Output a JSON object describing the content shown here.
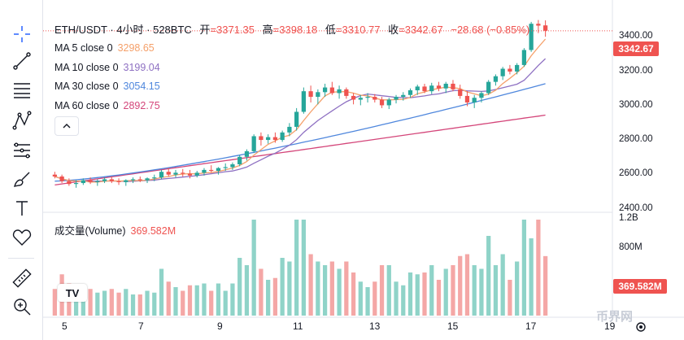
{
  "symbol": "ETH/USDT · 4小时 · 528BTC",
  "ohlc": {
    "open_label": "开",
    "open": "=3371.35",
    "high_label": "高",
    "high": "=3398.18",
    "low_label": "低",
    "low": "=3310.77",
    "close_label": "收",
    "close": "=3342.67",
    "change": "−28.68 (−0.85%)"
  },
  "ma": [
    {
      "label": "MA 5 close 0",
      "value": "3298.65",
      "color": "#f5a06a"
    },
    {
      "label": "MA 10 close 0",
      "value": "3199.04",
      "color": "#8e70c2"
    },
    {
      "label": "MA 30 close 0",
      "value": "3054.15",
      "color": "#4f87dd"
    },
    {
      "label": "MA 60 close 0",
      "value": "2892.75",
      "color": "#d4467a"
    }
  ],
  "volume": {
    "label": "成交量(Volume)",
    "value": "369.582M"
  },
  "price_axis": [
    "3400.00",
    "3200.00",
    "3000.00",
    "2800.00",
    "2600.00",
    "2400.00"
  ],
  "volume_axis": [
    "1.2B",
    "800M"
  ],
  "last_price_tag": "3342.67",
  "volume_tag": "369.582M",
  "x_axis": [
    "5",
    "7",
    "9",
    "11",
    "13",
    "15",
    "17",
    "19"
  ],
  "tv_logo": "TV",
  "watermark": "币界网",
  "colors": {
    "up": "#26a69a",
    "down": "#ef5350",
    "up_vol": "#8fd3c8",
    "down_vol": "#f4a7a6"
  },
  "toolbar_icons": [
    "crosshair-icon",
    "trend-line-icon",
    "horizontal-lines-icon",
    "pitchfork-icon",
    "fib-icon",
    "brush-icon",
    "text-icon",
    "heart-icon",
    "ruler-icon",
    "zoom-icon"
  ],
  "chart_data": {
    "type": "candlestick",
    "candles": [
      [
        2575,
        2590,
        2555,
        2565
      ],
      [
        2565,
        2575,
        2530,
        2540
      ],
      [
        2540,
        2555,
        2515,
        2525
      ],
      [
        2525,
        2545,
        2505,
        2530
      ],
      [
        2530,
        2555,
        2520,
        2545
      ],
      [
        2545,
        2560,
        2525,
        2535
      ],
      [
        2535,
        2550,
        2515,
        2540
      ],
      [
        2540,
        2560,
        2530,
        2550
      ],
      [
        2550,
        2565,
        2530,
        2540
      ],
      [
        2540,
        2555,
        2520,
        2535
      ],
      [
        2535,
        2550,
        2515,
        2545
      ],
      [
        2545,
        2560,
        2530,
        2550
      ],
      [
        2550,
        2565,
        2535,
        2545
      ],
      [
        2545,
        2560,
        2530,
        2555
      ],
      [
        2555,
        2575,
        2540,
        2560
      ],
      [
        2560,
        2600,
        2550,
        2590
      ],
      [
        2590,
        2610,
        2565,
        2575
      ],
      [
        2575,
        2600,
        2560,
        2585
      ],
      [
        2585,
        2605,
        2565,
        2580
      ],
      [
        2580,
        2600,
        2555,
        2570
      ],
      [
        2570,
        2595,
        2560,
        2585
      ],
      [
        2585,
        2610,
        2570,
        2600
      ],
      [
        2600,
        2625,
        2585,
        2595
      ],
      [
        2595,
        2615,
        2575,
        2610
      ],
      [
        2610,
        2635,
        2595,
        2615
      ],
      [
        2615,
        2640,
        2600,
        2630
      ],
      [
        2630,
        2680,
        2620,
        2670
      ],
      [
        2670,
        2710,
        2650,
        2700
      ],
      [
        2700,
        2790,
        2690,
        2780
      ],
      [
        2780,
        2800,
        2730,
        2760
      ],
      [
        2760,
        2790,
        2740,
        2775
      ],
      [
        2775,
        2800,
        2745,
        2760
      ],
      [
        2760,
        2810,
        2750,
        2800
      ],
      [
        2800,
        2850,
        2780,
        2830
      ],
      [
        2830,
        2930,
        2810,
        2910
      ],
      [
        2910,
        3040,
        2900,
        3020
      ],
      [
        3020,
        3050,
        2960,
        2990
      ],
      [
        2990,
        3030,
        2950,
        3015
      ],
      [
        3015,
        3060,
        2990,
        3040
      ],
      [
        3040,
        3070,
        3000,
        3010
      ],
      [
        3010,
        3050,
        2980,
        3030
      ],
      [
        3030,
        3040,
        2980,
        2995
      ],
      [
        2995,
        3010,
        2950,
        2975
      ],
      [
        2975,
        3000,
        2945,
        2985
      ],
      [
        2985,
        3010,
        2960,
        2990
      ],
      [
        2990,
        3005,
        2960,
        2975
      ],
      [
        2975,
        2990,
        2930,
        2945
      ],
      [
        2945,
        2985,
        2925,
        2975
      ],
      [
        2975,
        3000,
        2955,
        2990
      ],
      [
        2990,
        3015,
        2970,
        3000
      ],
      [
        3000,
        3035,
        2985,
        3025
      ],
      [
        3025,
        3055,
        3000,
        3045
      ],
      [
        3045,
        3060,
        3010,
        3020
      ],
      [
        3020,
        3065,
        3005,
        3050
      ],
      [
        3050,
        3070,
        3020,
        3035
      ],
      [
        3035,
        3070,
        3010,
        3060
      ],
      [
        3060,
        3080,
        3020,
        3030
      ],
      [
        3030,
        3055,
        2980,
        2995
      ],
      [
        2995,
        3020,
        2940,
        2960
      ],
      [
        2960,
        3000,
        2930,
        2985
      ],
      [
        2985,
        3020,
        2960,
        3010
      ],
      [
        3010,
        3080,
        3000,
        3070
      ],
      [
        3070,
        3110,
        3050,
        3100
      ],
      [
        3100,
        3150,
        3080,
        3140
      ],
      [
        3140,
        3160,
        3110,
        3125
      ],
      [
        3125,
        3170,
        3110,
        3160
      ],
      [
        3160,
        3250,
        3150,
        3240
      ],
      [
        3240,
        3390,
        3230,
        3380
      ],
      [
        3380,
        3400,
        3330,
        3370
      ],
      [
        3371.35,
        3398.18,
        3310.77,
        3342.67
      ]
    ],
    "volume_series": "relative heights shown under the price pane",
    "last": 3342.67,
    "ylim": [
      2400,
      3420
    ]
  }
}
